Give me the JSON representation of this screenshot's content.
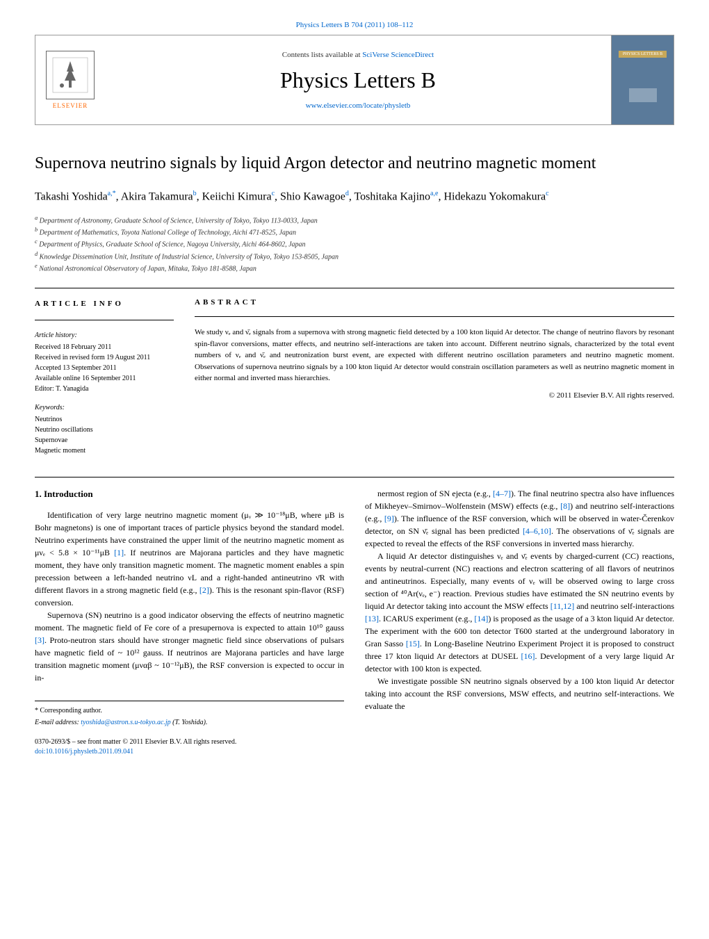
{
  "header": {
    "citation": "Physics Letters B 704 (2011) 108–112",
    "contents_prefix": "Contents lists available at ",
    "contents_link": "SciVerse ScienceDirect",
    "journal_name": "Physics Letters B",
    "journal_url": "www.elsevier.com/locate/physletb",
    "elsevier_label": "ELSEVIER",
    "cover_label": "PHYSICS LETTERS B"
  },
  "article": {
    "title": "Supernova neutrino signals by liquid Argon detector and neutrino magnetic moment",
    "authors_html": "Takashi Yoshida<sup>a,*</sup>, Akira Takamura<sup>b</sup>, Keiichi Kimura<sup>c</sup>, Shio Kawagoe<sup>d</sup>, Toshitaka Kajino<sup>a,e</sup>, Hidekazu Yokomakura<sup>c</sup>",
    "affiliations": [
      "a Department of Astronomy, Graduate School of Science, University of Tokyo, Tokyo 113-0033, Japan",
      "b Department of Mathematics, Toyota National College of Technology, Aichi 471-8525, Japan",
      "c Department of Physics, Graduate School of Science, Nagoya University, Aichi 464-8602, Japan",
      "d Knowledge Dissemination Unit, Institute of Industrial Science, University of Tokyo, Tokyo 153-8505, Japan",
      "e National Astronomical Observatory of Japan, Mitaka, Tokyo 181-8588, Japan"
    ]
  },
  "info": {
    "header": "ARTICLE INFO",
    "history_label": "Article history:",
    "history": [
      "Received 18 February 2011",
      "Received in revised form 19 August 2011",
      "Accepted 13 September 2011",
      "Available online 16 September 2011",
      "Editor: T. Yanagida"
    ],
    "keywords_label": "Keywords:",
    "keywords": [
      "Neutrinos",
      "Neutrino oscillations",
      "Supernovae",
      "Magnetic moment"
    ]
  },
  "abstract": {
    "header": "ABSTRACT",
    "text": "We study νₑ and ν̄ₑ signals from a supernova with strong magnetic field detected by a 100 kton liquid Ar detector. The change of neutrino flavors by resonant spin-flavor conversions, matter effects, and neutrino self-interactions are taken into account. Different neutrino signals, characterized by the total event numbers of νₑ and ν̄ₑ and neutronization burst event, are expected with different neutrino oscillation parameters and neutrino magnetic moment. Observations of supernova neutrino signals by a 100 kton liquid Ar detector would constrain oscillation parameters as well as neutrino magnetic moment in either normal and inverted mass hierarchies.",
    "copyright": "© 2011 Elsevier B.V. All rights reserved."
  },
  "body": {
    "section_heading": "1. Introduction",
    "col1": [
      "Identification of very large neutrino magnetic moment (μᵥ ≫ 10⁻¹⁸μB, where μB is Bohr magnetons) is one of important traces of particle physics beyond the standard model. Neutrino experiments have constrained the upper limit of the neutrino magnetic moment as μνₑ < 5.8 × 10⁻¹¹μB [1]. If neutrinos are Majorana particles and they have magnetic moment, they have only transition magnetic moment. The magnetic moment enables a spin precession between a left-handed neutrino νL and a right-handed antineutrino ν̄R with different flavors in a strong magnetic field (e.g., [2]). This is the resonant spin-flavor (RSF) conversion.",
      "Supernova (SN) neutrino is a good indicator observing the effects of neutrino magnetic moment. The magnetic field of Fe core of a presupernova is expected to attain 10¹⁰ gauss [3]. Proto-neutron stars should have stronger magnetic field since observations of pulsars have magnetic field of ~ 10¹² gauss. If neutrinos are Majorana particles and have large transition magnetic moment (μναβ ~ 10⁻¹²μB), the RSF conversion is expected to occur in in-"
    ],
    "col2": [
      "nermost region of SN ejecta (e.g., [4–7]). The final neutrino spectra also have influences of Mikheyev–Smirnov–Wolfenstein (MSW) effects (e.g., [8]) and neutrino self-interactions (e.g., [9]). The influence of the RSF conversion, which will be observed in water-Čerenkov detector, on SN ν̄ₑ signal has been predicted [4–6,10]. The observations of ν̄ₑ signals are expected to reveal the effects of the RSF conversions in inverted mass hierarchy.",
      "A liquid Ar detector distinguishes νₑ and ν̄ₑ events by charged-current (CC) reactions, events by neutral-current (NC) reactions and electron scattering of all flavors of neutrinos and antineutrinos. Especially, many events of νₑ will be observed owing to large cross section of ⁴⁰Ar(νₑ, e⁻) reaction. Previous studies have estimated the SN neutrino events by liquid Ar detector taking into account the MSW effects [11,12] and neutrino self-interactions [13]. ICARUS experiment (e.g., [14]) is proposed as the usage of a 3 kton liquid Ar detector. The experiment with the 600 ton detector T600 started at the underground laboratory in Gran Sasso [15]. In Long-Baseline Neutrino Experiment Project it is proposed to construct three 17 kton liquid Ar detectors at DUSEL [16]. Development of a very large liquid Ar detector with 100 kton is expected.",
      "We investigate possible SN neutrino signals observed by a 100 kton liquid Ar detector taking into account the RSF conversions, MSW effects, and neutrino self-interactions. We evaluate the"
    ]
  },
  "footer": {
    "corresponding": "* Corresponding author.",
    "email_label": "E-mail address: ",
    "email": "tyoshida@astron.s.u-tokyo.ac.jp",
    "email_suffix": " (T. Yoshida).",
    "front_matter": "0370-2693/$ – see front matter © 2011 Elsevier B.V. All rights reserved.",
    "doi": "doi:10.1016/j.physletb.2011.09.041"
  },
  "colors": {
    "link": "#0066cc",
    "elsevier_orange": "#ff6600",
    "cover_bg": "#5a7a9a",
    "cover_badge": "#c8a85a"
  }
}
